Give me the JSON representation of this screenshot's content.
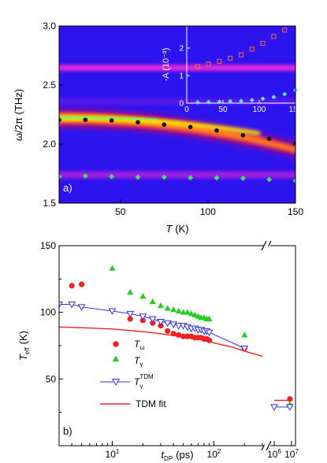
{
  "chart_data": [
    {
      "panel_label": "a)",
      "type": "heatmap",
      "xlabel": "T (K)",
      "xlabel_symbol": "T",
      "xlabel_unit": "(K)",
      "ylabel": "ω/2π (THz)",
      "xlim": [
        15,
        150
      ],
      "ylim": [
        1.5,
        3.0
      ],
      "x_ticks": [
        {
          "v": 50,
          "t": "50"
        },
        {
          "v": 100,
          "t": "100"
        },
        {
          "v": 150,
          "t": "150"
        }
      ],
      "y_ticks": [
        {
          "v": 1.5,
          "t": "1.5"
        },
        {
          "v": 2.0,
          "t": "2.0"
        },
        {
          "v": 2.5,
          "t": "2.5"
        },
        {
          "v": 3.0,
          "t": "3.0"
        }
      ],
      "colors": {
        "background": "#2c14ee",
        "peak": "#ffff00",
        "black_points": "#111111",
        "green_points": "#44dd66"
      },
      "series": [
        {
          "marker": "circle-black",
          "x": [
            15,
            30,
            45,
            60,
            75,
            90,
            105,
            120,
            135,
            150
          ],
          "y": [
            2.205,
            2.205,
            2.2,
            2.185,
            2.165,
            2.145,
            2.115,
            2.075,
            2.045,
            2.005
          ]
        },
        {
          "marker": "diamond-green",
          "x": [
            15,
            30,
            45,
            60,
            75,
            90,
            105,
            120,
            135,
            150
          ],
          "y": [
            1.725,
            1.73,
            1.725,
            1.72,
            1.72,
            1.715,
            1.715,
            1.71,
            1.7,
            1.69
          ]
        }
      ],
      "inset": {
        "ylabel": "-A (10⁻³)",
        "xlim": [
          0,
          150
        ],
        "ylim": [
          0,
          2.8
        ],
        "x_ticks": [
          {
            "v": 0,
            "t": "0"
          },
          {
            "v": 50,
            "t": "50"
          },
          {
            "v": 100,
            "t": "100"
          },
          {
            "v": 150,
            "t": "150"
          }
        ],
        "y_ticks": [
          {
            "v": 0,
            "t": "0"
          },
          {
            "v": 1,
            "t": "1"
          },
          {
            "v": 2,
            "t": "2"
          }
        ],
        "series": [
          {
            "marker": "square-red",
            "x": [
              15,
              30,
              45,
              60,
              75,
              90,
              105,
              120,
              135
            ],
            "y": [
              1.33,
              1.42,
              1.52,
              1.63,
              1.75,
              1.96,
              2.17,
              2.42,
              2.65
            ]
          },
          {
            "marker": "diamond-green",
            "x": [
              15,
              30,
              45,
              60,
              75,
              90,
              105,
              120,
              135,
              150
            ],
            "y": [
              0.03,
              0.04,
              0.05,
              0.07,
              0.08,
              0.11,
              0.16,
              0.22,
              0.33,
              0.47
            ]
          }
        ]
      }
    },
    {
      "panel_label": "b)",
      "type": "scatter",
      "xlabel": "tDP (ps)",
      "xlabel_main": "t",
      "xlabel_sub": "DP",
      "xlabel_unit": "(ps)",
      "ylabel": "Teff (K)",
      "ylabel_main": "T",
      "ylabel_sub": "eff",
      "ylabel_unit": "(K)",
      "x_scale": "log",
      "x_break": true,
      "xlim": [
        3,
        300
      ],
      "ylim": [
        0,
        150
      ],
      "x_ticks": [
        {
          "v": 10,
          "base": "10",
          "exp": "1"
        },
        {
          "v": 100,
          "base": "10",
          "exp": "2"
        }
      ],
      "x_ticks_after_break": [
        {
          "v": 1000000,
          "base": "10",
          "exp": "6"
        },
        {
          "v": 10000000,
          "base": "10",
          "exp": "7"
        }
      ],
      "y_ticks": [
        {
          "v": 50,
          "t": "50"
        },
        {
          "v": 100,
          "t": "100"
        },
        {
          "v": 150,
          "t": "150"
        }
      ],
      "legend_position": "bottom-left",
      "series": [
        {
          "name": "Tω",
          "label_main": "T",
          "label_sub": "ω",
          "color": "#ee2222",
          "marker": "circle",
          "x": [
            4,
            5,
            15,
            20,
            25,
            30,
            35,
            40,
            45,
            50,
            55,
            60,
            65,
            70,
            75,
            80,
            85,
            90,
            200
          ],
          "y": [
            120,
            121,
            95,
            94,
            92,
            90,
            86,
            84,
            83,
            82,
            82,
            82,
            81,
            81,
            81,
            80,
            80,
            79,
            73
          ],
          "after_break": [
            {
              "x": 8000000,
              "y": 35
            }
          ]
        },
        {
          "name": "Tγ",
          "label_main": "T",
          "label_sub": "γ",
          "color": "#22cc22",
          "marker": "triangle",
          "x": [
            10,
            15,
            20,
            25,
            30,
            35,
            40,
            45,
            50,
            55,
            60,
            65,
            70,
            75,
            80,
            85,
            90,
            200
          ],
          "y": [
            133,
            115,
            112,
            108,
            105,
            103,
            102,
            101,
            100,
            100,
            99,
            98,
            97,
            96,
            96,
            95,
            95,
            83
          ],
          "after_break": [
            {
              "x": 8000000,
              "y": 31
            }
          ]
        },
        {
          "name": "Tγ TDM",
          "label_main": "T",
          "label_sub": "γ",
          "label_sup": "TDM",
          "color": "#3333dd",
          "marker": "triangle-down-open",
          "x": [
            3,
            4,
            5,
            10,
            15,
            20,
            25,
            30,
            35,
            40,
            45,
            50,
            55,
            60,
            65,
            70,
            75,
            80,
            85,
            90,
            200
          ],
          "y": [
            106,
            106,
            104,
            101,
            99,
            97,
            95,
            93,
            92,
            91,
            90,
            90,
            89,
            88,
            88,
            87,
            87,
            86,
            86,
            85,
            73
          ],
          "after_break": [
            {
              "x": 1000000,
              "y": 29
            },
            {
              "x": 8000000,
              "y": 29
            }
          ]
        },
        {
          "name": "TDM fit",
          "label_main": "TDM fit",
          "color": "#ee2222",
          "marker": "line",
          "x": [
            3,
            5,
            10,
            20,
            30,
            50,
            70,
            100,
            150,
            200,
            300
          ],
          "y": [
            89,
            88.5,
            87.5,
            85.5,
            84,
            81.5,
            80,
            77,
            74,
            71,
            67
          ],
          "after_break": [
            {
              "x": 1000000,
              "y": 34
            },
            {
              "x": 10000000,
              "y": 34
            }
          ]
        }
      ]
    }
  ]
}
